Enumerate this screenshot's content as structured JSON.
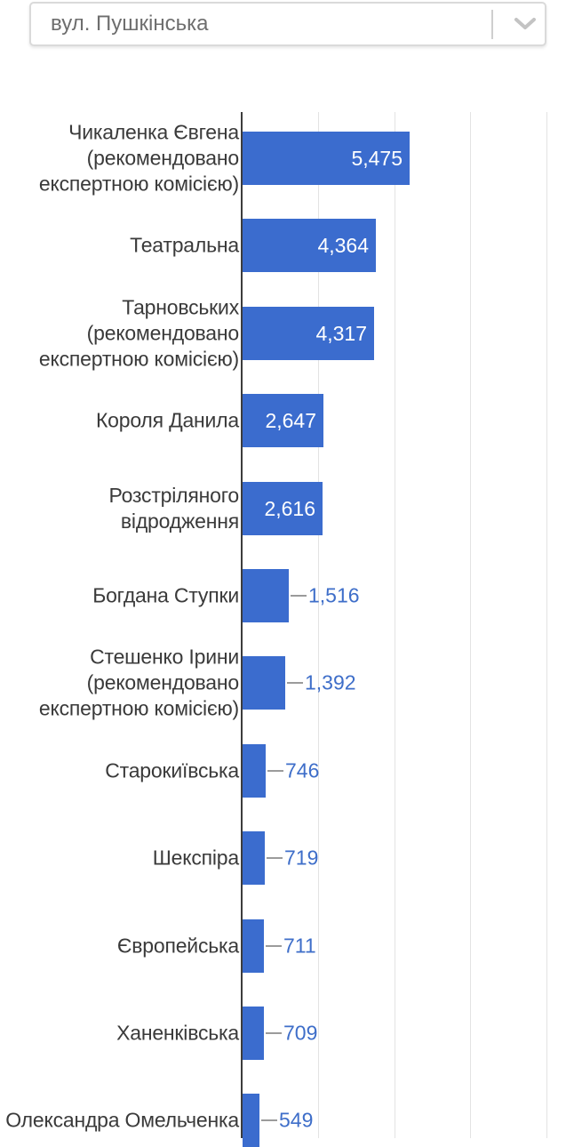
{
  "dropdown": {
    "value": "вул. Пушкінська",
    "chevron_icon": "chevron-down"
  },
  "chart_data": {
    "type": "bar",
    "orientation": "horizontal",
    "title": "",
    "xlabel": "",
    "ylabel": "",
    "xlim": [
      0,
      10000
    ],
    "gridline_step": 2500,
    "grid": true,
    "legend": "none",
    "bar_color": "#3b6cce",
    "annotation_inside_color": "#ffffff",
    "annotation_outside_color": "#3e6ec9",
    "axis_color": "#3d3d3d",
    "gridline_color": "#e3e3e3",
    "categories": [
      "Чикаленка Євгена (рекомендовано експертною комісією)",
      "Театральна",
      "Тарновських (рекомендовано експертною комісією)",
      "Короля Данила",
      "Розстріляного відродження",
      "Богдана Ступки",
      "Стешенко Ірини (рекомендовано експертною комісією)",
      "Старокиївська",
      "Шекспіра",
      "Європейська",
      "Ханенківська",
      "Олександра Омельченка"
    ],
    "category_display_lines": [
      [
        "Чикаленка Євгена",
        "(рекомендовано",
        "експертною комісією)"
      ],
      [
        "Театральна"
      ],
      [
        "Тарновських",
        "(рекомендовано",
        "експертною комісією)"
      ],
      [
        "Короля Данила"
      ],
      [
        "Розстріляного",
        "відродження"
      ],
      [
        "Богдана Ступки"
      ],
      [
        "Стешенко Ірини",
        "(рекомендовано",
        "експертною комісією)"
      ],
      [
        "Старокиївська"
      ],
      [
        "Шекспіра"
      ],
      [
        "Європейська"
      ],
      [
        "Ханенківська"
      ],
      [
        "Олександра Омельченка"
      ]
    ],
    "values": [
      5475,
      4364,
      4317,
      2647,
      2616,
      1516,
      1392,
      746,
      719,
      711,
      709,
      549
    ],
    "value_labels": [
      "5,475",
      "4,364",
      "4,317",
      "2,647",
      "2,616",
      "1,516",
      "1,392",
      "746",
      "719",
      "711",
      "709",
      "549"
    ]
  }
}
